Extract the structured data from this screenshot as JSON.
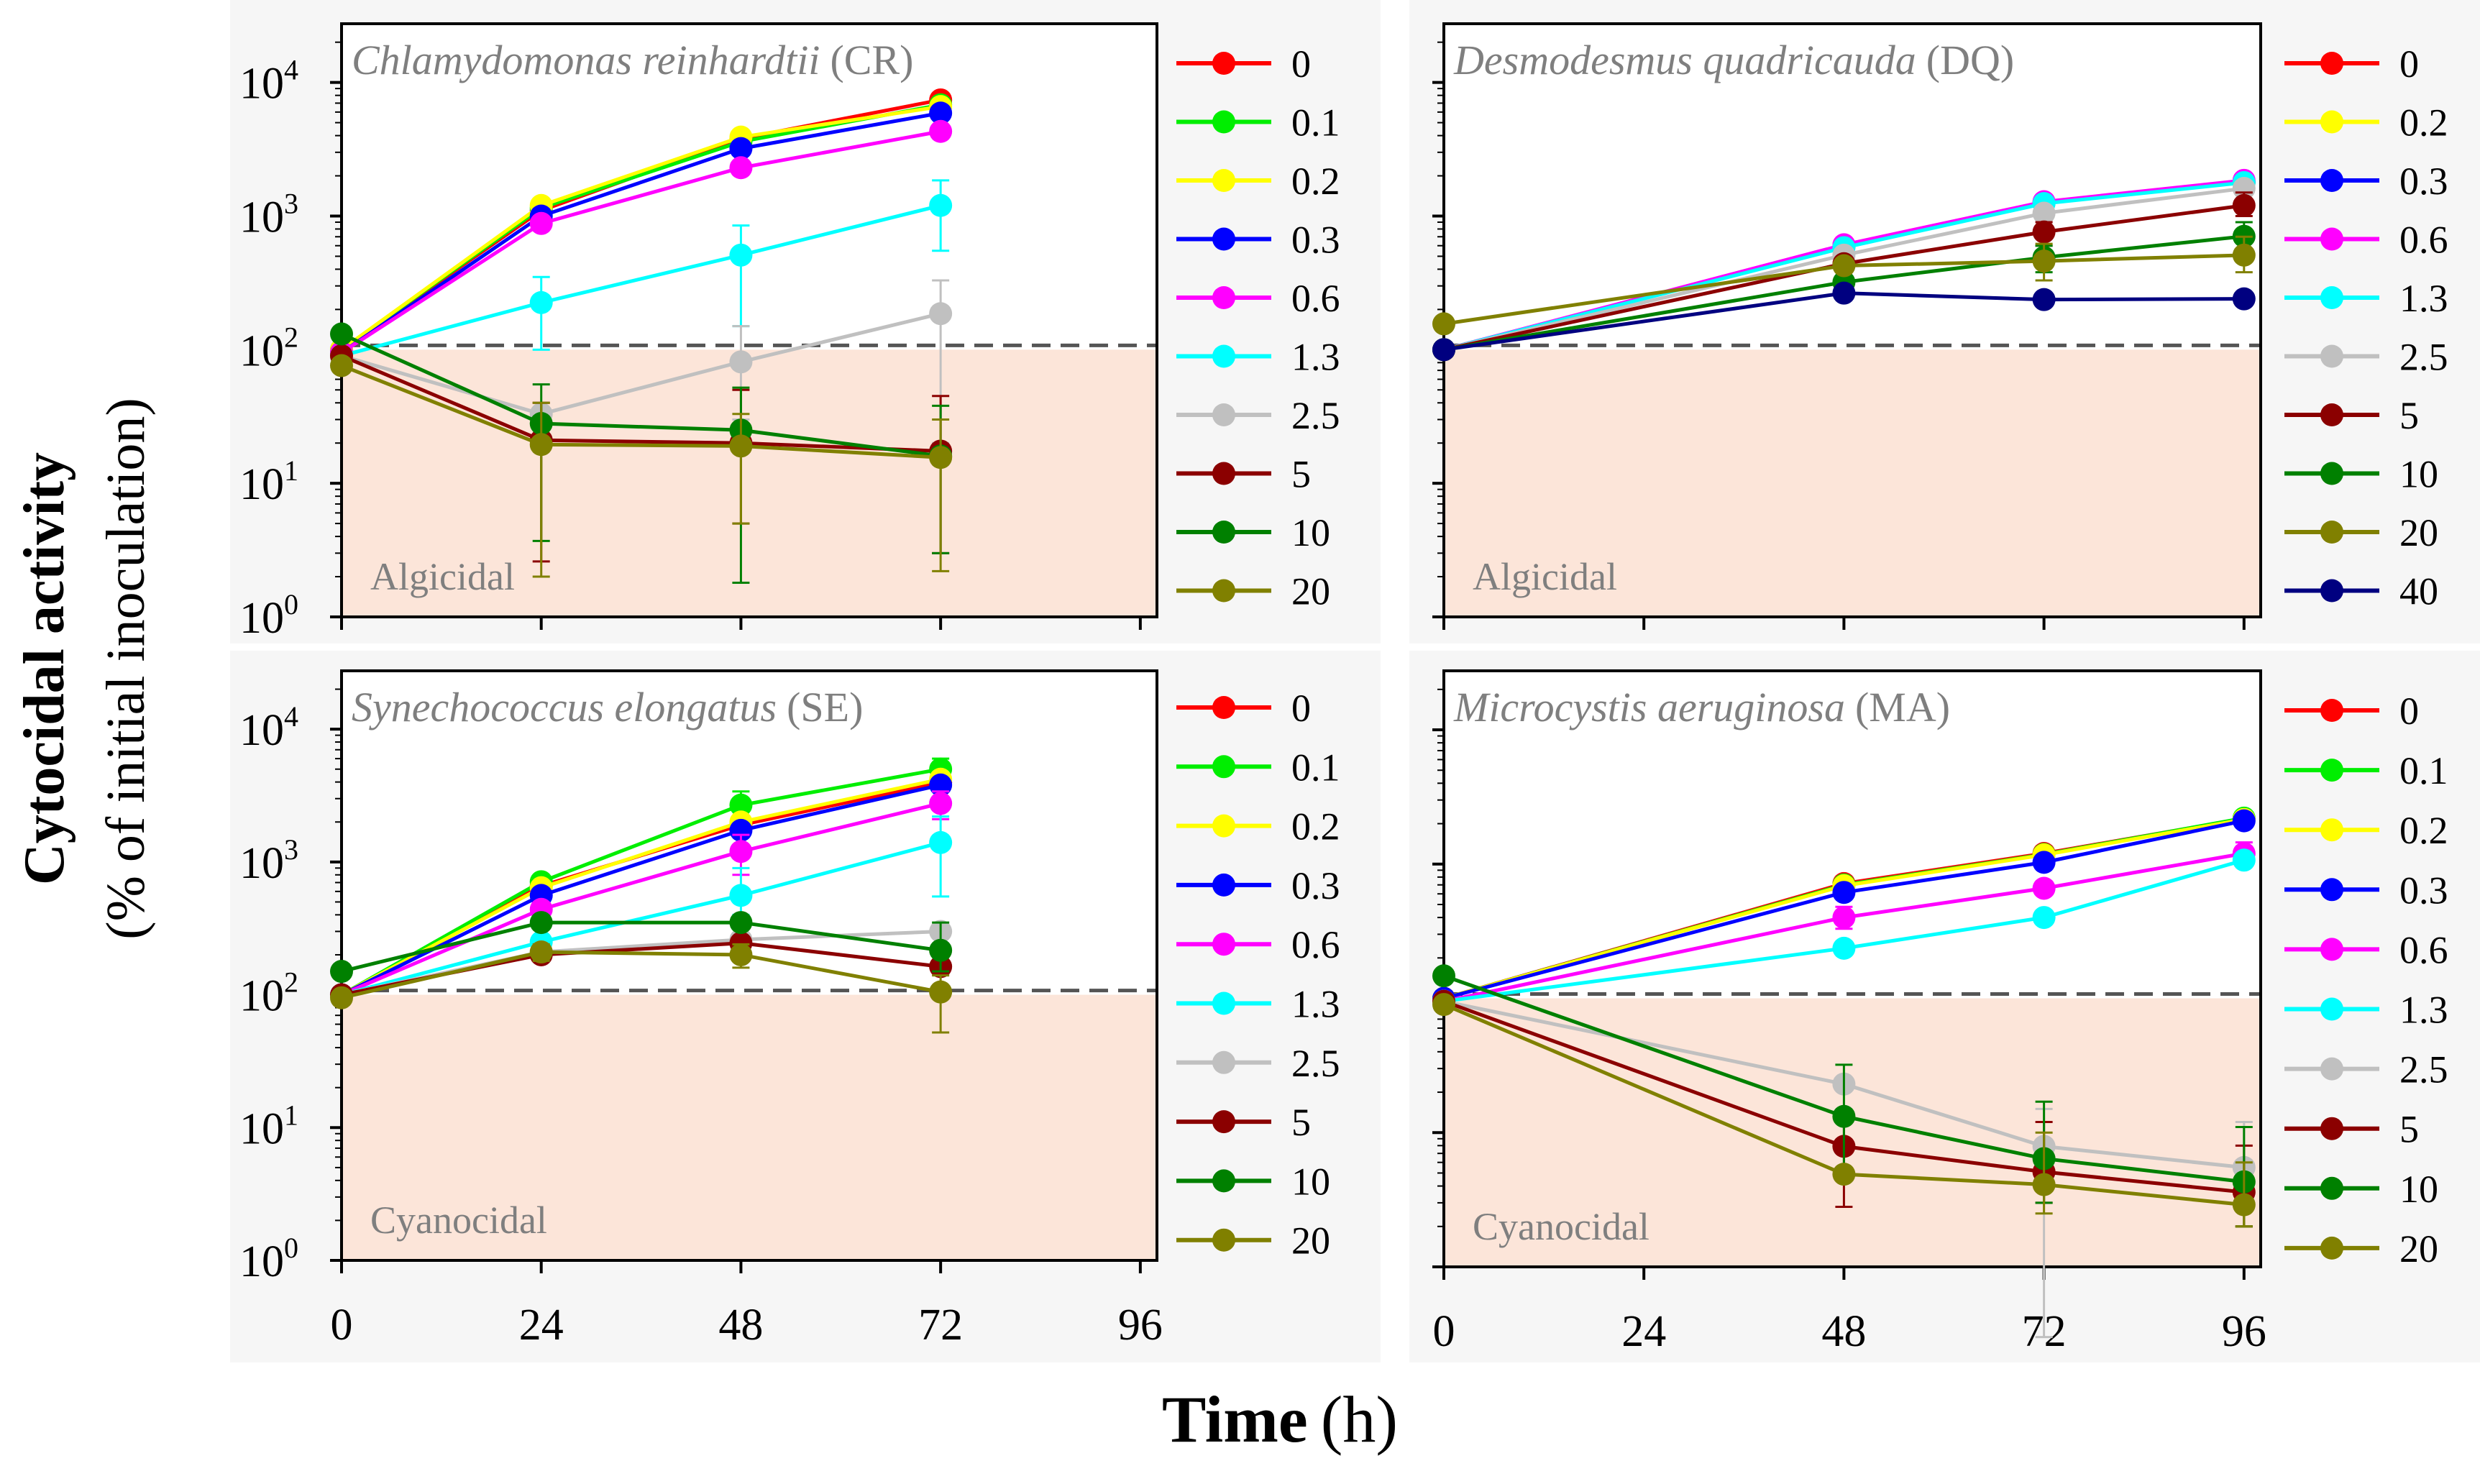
{
  "figure": {
    "ylabel_main": "Cytocidal activity",
    "ylabel_sub": "(% of initial inoculation)",
    "xlabel_main": "Time",
    "xlabel_unit": "(h)"
  },
  "colors": {
    "0": "#ff0000",
    "0.1": "#00ee00",
    "0.2": "#ffff00",
    "0.3": "#0000ff",
    "0.6": "#ff00ff",
    "1.3": "#00ffff",
    "2.5": "#c0c0c0",
    "5": "#8b0000",
    "10": "#008000",
    "20": "#808000",
    "40": "#000080",
    "shade": "#fce5d9",
    "threshold": "#555555",
    "title": "#7f7f7f"
  },
  "chart_data": [
    {
      "type": "line",
      "title_species": "Chlamydomonas reinhardtii",
      "title_abbr": "(CR)",
      "region_label": "Algicidal",
      "yscale": "log",
      "ylim": [
        1,
        27500
      ],
      "xlim": [
        0,
        98
      ],
      "threshold": 100,
      "ytick_base": "10",
      "ytick_exponents": [
        "0",
        "1",
        "2",
        "3",
        "4"
      ],
      "show_ytick_labels": true,
      "xticks": [
        "0",
        "24",
        "48",
        "72",
        "96"
      ],
      "show_xtick_labels": false,
      "x": [
        0,
        24,
        48,
        72
      ],
      "series": [
        {
          "name": "0",
          "values": [
            100,
            1100,
            3800,
            7400
          ]
        },
        {
          "name": "0.1",
          "values": [
            100,
            1150,
            3600,
            6800
          ]
        },
        {
          "name": "0.2",
          "values": [
            100,
            1200,
            3900,
            6600
          ]
        },
        {
          "name": "0.3",
          "values": [
            95,
            1000,
            3200,
            5900
          ]
        },
        {
          "name": "0.6",
          "values": [
            95,
            880,
            2300,
            4300
          ]
        },
        {
          "name": "1.3",
          "values": [
            90,
            225,
            510,
            1200
          ],
          "err": [
            null,
            [
              100,
              350
            ],
            [
              150,
              850
            ],
            [
              550,
              1850
            ]
          ]
        },
        {
          "name": "2.5",
          "values": [
            90,
            33,
            81,
            186
          ],
          "err": [
            null,
            null,
            [
              30,
              150
            ],
            [
              20,
              330
            ]
          ]
        },
        {
          "name": "5",
          "values": [
            90,
            21,
            20,
            17.4
          ],
          "err": [
            null,
            [
              2.6,
              40
            ],
            [
              5,
              50
            ],
            [
              3,
              45
            ]
          ]
        },
        {
          "name": "10",
          "values": [
            131,
            28,
            25,
            16
          ],
          "err": [
            null,
            [
              3.7,
              55
            ],
            [
              1.8,
              52
            ],
            [
              3,
              38
            ]
          ]
        },
        {
          "name": "20",
          "values": [
            76,
            19.5,
            19,
            15.6
          ],
          "err": [
            null,
            [
              2,
              40
            ],
            [
              5,
              33
            ],
            [
              2.2,
              30
            ]
          ]
        }
      ]
    },
    {
      "type": "line",
      "title_species": "Desmodesmus quadricauda",
      "title_abbr": "(DQ)",
      "region_label": "Algicidal",
      "yscale": "log",
      "ylim": [
        1,
        27500
      ],
      "xlim": [
        0,
        98
      ],
      "threshold": 100,
      "show_ytick_labels": false,
      "xticks": [
        "0",
        "24",
        "48",
        "72",
        "96"
      ],
      "show_xtick_labels": false,
      "x": [
        0,
        48,
        72,
        96
      ],
      "series": [
        {
          "name": "0",
          "values": [
            100,
            590,
            1250,
            1790
          ]
        },
        {
          "name": "0.2",
          "values": [
            100,
            590,
            1250,
            1790
          ]
        },
        {
          "name": "0.3",
          "values": [
            100,
            600,
            1260,
            1800
          ]
        },
        {
          "name": "0.6",
          "values": [
            100,
            610,
            1280,
            1850
          ]
        },
        {
          "name": "1.3",
          "values": [
            100,
            580,
            1240,
            1780
          ]
        },
        {
          "name": "2.5",
          "values": [
            100,
            510,
            1050,
            1610
          ]
        },
        {
          "name": "5",
          "values": [
            100,
            440,
            760,
            1200
          ],
          "err": [
            null,
            null,
            [
              600,
              900
            ],
            [
              1000,
              1500
            ]
          ]
        },
        {
          "name": "10",
          "values": [
            100,
            320,
            490,
            705
          ],
          "err": [
            null,
            null,
            [
              380,
              600
            ],
            [
              560,
              900
            ]
          ]
        },
        {
          "name": "20",
          "values": [
            156,
            425,
            460,
            510
          ],
          "err": [
            null,
            null,
            [
              330,
              620
            ],
            [
              380,
              700
            ]
          ]
        },
        {
          "name": "40",
          "values": [
            100,
            265,
            237,
            240
          ]
        }
      ]
    },
    {
      "type": "line",
      "title_species": "Synechococcus elongatus",
      "title_abbr": "(SE)",
      "region_label": "Cyanocidal",
      "yscale": "log",
      "ylim": [
        1,
        27500
      ],
      "xlim": [
        0,
        98
      ],
      "threshold": 100,
      "ytick_base": "10",
      "ytick_exponents": [
        "0",
        "1",
        "2",
        "3",
        "4"
      ],
      "show_ytick_labels": true,
      "xticks": [
        "0",
        "24",
        "48",
        "72",
        "96"
      ],
      "show_xtick_labels": true,
      "x": [
        0,
        24,
        48,
        72
      ],
      "series": [
        {
          "name": "0",
          "values": [
            100,
            660,
            1900,
            3960
          ]
        },
        {
          "name": "0.1",
          "values": [
            100,
            710,
            2680,
            5000
          ],
          "err": [
            null,
            null,
            [
              2000,
              3400
            ],
            [
              4000,
              6000
            ]
          ]
        },
        {
          "name": "0.2",
          "values": [
            100,
            640,
            2000,
            4200
          ]
        },
        {
          "name": "0.3",
          "values": [
            100,
            560,
            1730,
            3800
          ]
        },
        {
          "name": "0.6",
          "values": [
            100,
            440,
            1200,
            2760
          ],
          "err": [
            null,
            null,
            [
              800,
              1600
            ],
            [
              2100,
              3400
            ]
          ]
        },
        {
          "name": "1.3",
          "values": [
            100,
            250,
            560,
            1400
          ],
          "err": [
            null,
            null,
            [
              400,
              900
            ],
            [
              550,
              2200
            ]
          ]
        },
        {
          "name": "2.5",
          "values": [
            100,
            210,
            260,
            300
          ]
        },
        {
          "name": "5",
          "values": [
            100,
            200,
            245,
            163
          ]
        },
        {
          "name": "10",
          "values": [
            150,
            350,
            350,
            216
          ],
          "err": [
            null,
            null,
            null,
            [
              150,
              350
            ]
          ]
        },
        {
          "name": "20",
          "values": [
            95,
            210,
            200,
            105
          ],
          "err": [
            null,
            [
              180,
              240
            ],
            [
              160,
              240
            ],
            [
              52,
              140
            ]
          ]
        }
      ]
    },
    {
      "type": "line",
      "title_species": "Microcystis aeruginosa",
      "title_abbr": "(MA)",
      "region_label": "Cyanocidal",
      "yscale": "log",
      "ylim": [
        1,
        27500
      ],
      "xlim": [
        0,
        98
      ],
      "threshold": 100,
      "show_ytick_labels": false,
      "xticks": [
        "0",
        "24",
        "48",
        "72",
        "96"
      ],
      "show_xtick_labels": true,
      "x": [
        0,
        48,
        72,
        96
      ],
      "series": [
        {
          "name": "0",
          "values": [
            100,
            716,
            1200,
            2180
          ]
        },
        {
          "name": "0.1",
          "values": [
            100,
            700,
            1180,
            2200
          ]
        },
        {
          "name": "0.2",
          "values": [
            100,
            690,
            1170,
            2150
          ]
        },
        {
          "name": "0.3",
          "values": [
            100,
            615,
            1030,
            2100
          ]
        },
        {
          "name": "0.6",
          "values": [
            95,
            400,
            660,
            1200
          ],
          "err": [
            null,
            [
              330,
              480
            ],
            null,
            [
              1000,
              1450
            ]
          ]
        },
        {
          "name": "1.3",
          "values": [
            95,
            236,
            400,
            1070
          ]
        },
        {
          "name": "2.5",
          "values": [
            95,
            23,
            7.9,
            5.5
          ],
          "err": [
            null,
            null,
            [
              0.3,
              15
            ],
            [
              2,
              12
            ]
          ]
        },
        {
          "name": "5",
          "values": [
            95,
            7.9,
            5.1,
            3.6
          ],
          "err": [
            null,
            [
              2.8,
              12
            ],
            [
              3,
              12
            ],
            [
              2,
              8
            ]
          ]
        },
        {
          "name": "10",
          "values": [
            147,
            13.2,
            6.4,
            4.3
          ],
          "err": [
            null,
            [
              5,
              32
            ],
            [
              3,
              17
            ],
            [
              2,
              11
            ]
          ]
        },
        {
          "name": "20",
          "values": [
            90,
            4.9,
            4.1,
            2.9
          ],
          "err": [
            null,
            null,
            [
              2.5,
              10
            ],
            [
              2,
              6
            ]
          ]
        }
      ]
    }
  ]
}
